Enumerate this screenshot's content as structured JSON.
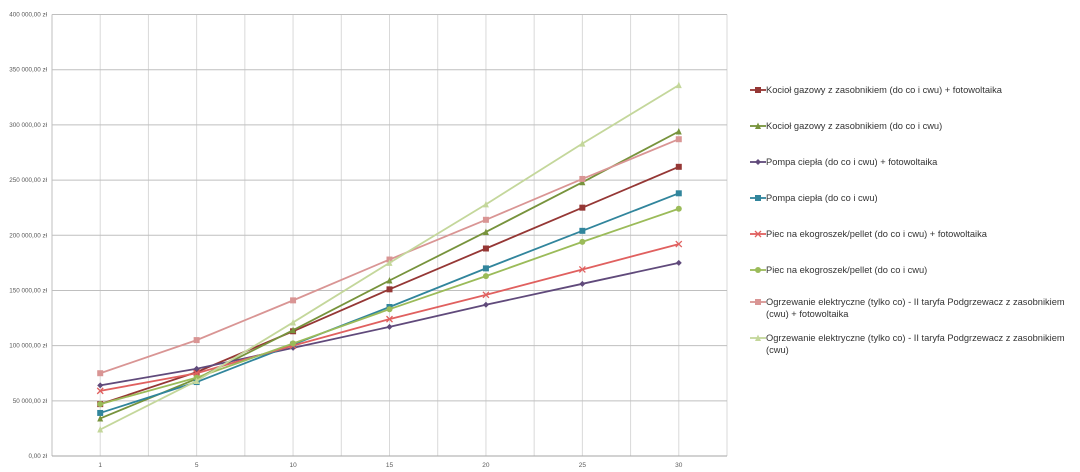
{
  "chart_data": {
    "type": "line",
    "title": "",
    "xlabel": "",
    "ylabel": "",
    "categories": [
      "1",
      "5",
      "10",
      "15",
      "20",
      "25",
      "30"
    ],
    "ylim": [
      0,
      400000
    ],
    "ytick_step": 50000,
    "ytick_labels": [
      "0,00 zł",
      "50 000,00 zł",
      "100 000,00 zł",
      "150 000,00 zł",
      "200 000,00 zł",
      "250 000,00 zł",
      "300 000,00 zł",
      "350 000,00 zł",
      "400 000,00 zł"
    ],
    "grid": true,
    "legend_position": "right",
    "series": [
      {
        "name": "Kocioł gazowy z zasobnikiem (do co i cwu) + fotowoltaika",
        "color": "#953735",
        "marker": "square",
        "values": [
          47000,
          76000,
          113000,
          151000,
          188000,
          225000,
          262000
        ]
      },
      {
        "name": "Kocioł gazowy z zasobnikiem (do co i cwu)",
        "color": "#77933c",
        "marker": "triangle",
        "values": [
          34000,
          70000,
          114000,
          159000,
          203000,
          248000,
          294000
        ]
      },
      {
        "name": "Pompa ciepła (do co i cwu) + fotowoltaika",
        "color": "#604a7b",
        "marker": "diamond",
        "values": [
          64000,
          79000,
          98000,
          117000,
          137000,
          156000,
          175000
        ]
      },
      {
        "name": "Pompa ciepła (do co i cwu)",
        "color": "#31859c",
        "marker": "square",
        "values": [
          39000,
          67000,
          101000,
          135000,
          170000,
          204000,
          238000
        ]
      },
      {
        "name": "Piec na ekogroszek/pellet (do co i cwu) + fotowoltaika",
        "color": "#e0605f",
        "marker": "x",
        "values": [
          59000,
          75000,
          100000,
          124000,
          146000,
          169000,
          192000
        ]
      },
      {
        "name": "Piec na ekogroszek/pellet (do co i cwu)",
        "color": "#9bbb59",
        "marker": "circle",
        "values": [
          47000,
          71000,
          102000,
          133000,
          163000,
          194000,
          224000
        ]
      },
      {
        "name": "Ogrzewanie elektryczne (tylko co) - II taryfa Podgrzewacz z zasobnikiem (cwu) + fotowoltaika",
        "color": "#d99594",
        "marker": "square",
        "values": [
          75000,
          105000,
          141000,
          178000,
          214000,
          251000,
          287000
        ]
      },
      {
        "name": "Ogrzewanie elektryczne (tylko co) - II taryfa Podgrzewacz z zasobnikiem (cwu)",
        "color": "#c4d79b",
        "marker": "triangle",
        "values": [
          24000,
          68000,
          121000,
          175000,
          228000,
          283000,
          336000
        ]
      }
    ]
  }
}
